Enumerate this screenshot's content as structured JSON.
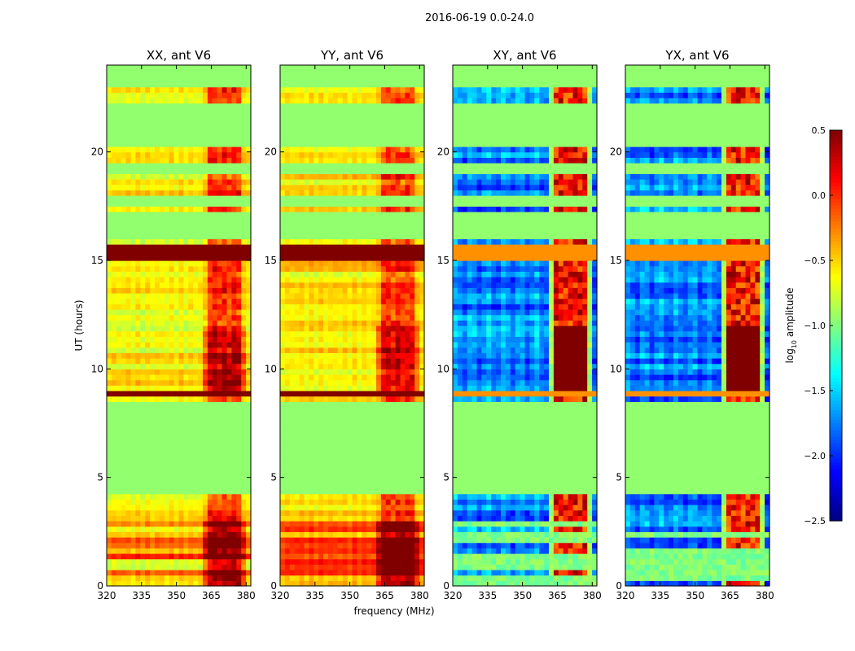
{
  "chart_data": {
    "type": "heatmap",
    "suptitle": "2016-06-19 0.0-24.0",
    "xlabel": "frequency (MHz)",
    "ylabel": "UT (hours)",
    "xlim": [
      320,
      382
    ],
    "ylim": [
      0,
      24
    ],
    "x_ticks": [
      320,
      335,
      350,
      365,
      380
    ],
    "y_ticks": [
      0,
      5,
      10,
      15,
      20
    ],
    "colorbar": {
      "label": "log10 amplitude",
      "label_base": "log",
      "label_sub": "10",
      "label_rest": " amplitude",
      "range": [
        -2.5,
        0.5
      ],
      "ticks": [
        "0.5",
        "0.0",
        "−0.5",
        "−1.0",
        "−1.5",
        "−2.0",
        "−2.5"
      ],
      "tick_values": [
        0.5,
        0.0,
        -0.5,
        -1.0,
        -1.5,
        -2.0,
        -2.5
      ]
    },
    "panels": [
      {
        "title": "XX, ant V6",
        "kind": "auto",
        "base": -0.6,
        "rfi": 0.35
      },
      {
        "title": "YY, ant V6",
        "kind": "auto",
        "base": -0.55,
        "rfi": 0.25
      },
      {
        "title": "XY, ant V6",
        "kind": "cross",
        "base": -1.75,
        "rfi": 0.0
      },
      {
        "title": "YX, ant V6",
        "kind": "cross",
        "base": -1.75,
        "rfi": 0.0
      }
    ],
    "flagged_value": -0.95,
    "rfi_band_mhz": [
      362,
      380
    ],
    "rfi_channels_mhz": [
      364,
      368,
      372,
      376
    ],
    "flagged_ut_ranges": [
      [
        4.2,
        8.6
      ],
      [
        12.7,
        12.8
      ],
      [
        15.9,
        17.2
      ],
      [
        17.5,
        17.9
      ],
      [
        19.0,
        19.4
      ],
      [
        20.2,
        22.3
      ],
      [
        23.0,
        24.0
      ]
    ],
    "bright_ut_bands": [
      [
        15.0,
        15.7
      ],
      [
        8.7,
        8.9
      ],
      [
        22.5,
        22.6
      ]
    ]
  }
}
